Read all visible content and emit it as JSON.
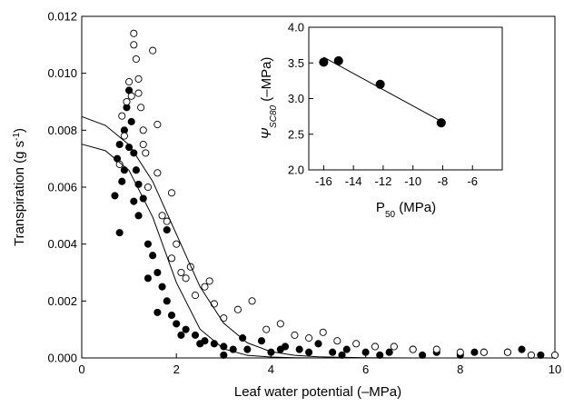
{
  "chart_data": [
    {
      "type": "scatter",
      "x_label": "Leaf water potential (–MPa)",
      "y_label_main": "Transpiration (g s",
      "y_label_sup": "-1",
      "y_label_end": ")",
      "xlim": [
        0,
        10
      ],
      "ylim": [
        0,
        0.012
      ],
      "xticks": [
        0,
        2,
        4,
        6,
        8,
        10
      ],
      "yticks": [
        {
          "value": 0,
          "label": "0.000"
        },
        {
          "value": 0.002,
          "label": "0.002"
        },
        {
          "value": 0.004,
          "label": "0.004"
        },
        {
          "value": 0.006,
          "label": "0.006"
        },
        {
          "value": 0.008,
          "label": "0.008"
        },
        {
          "value": 0.01,
          "label": "0.010"
        },
        {
          "value": 0.012,
          "label": "0.012"
        }
      ],
      "series": [
        {
          "type": "scatter",
          "color": "#000000",
          "fill": "#000000",
          "x": [
            0.7,
            0.75,
            0.8,
            0.85,
            0.9,
            0.95,
            1.0,
            1.05,
            1.1,
            1.15,
            1.2,
            1.3,
            1.4,
            1.5,
            1.6,
            1.7,
            1.8,
            1.9,
            2.0,
            2.2,
            2.4,
            2.6,
            2.8,
            3.0,
            3.2,
            3.5,
            3.8,
            4.0,
            4.3,
            4.6,
            5.0,
            5.3,
            5.6,
            6.0,
            6.5,
            7.0,
            7.5,
            8.0,
            8.5,
            9.0,
            9.3,
            9.7,
            0.8,
            0.9,
            1.0,
            1.1,
            1.2,
            1.4,
            1.6,
            1.8,
            2.1,
            2.5,
            3.0,
            3.4,
            4.2,
            4.8,
            5.5,
            6.3,
            7.2,
            8.3
          ],
          "values": [
            0.0057,
            0.007,
            0.0075,
            0.0062,
            0.008,
            0.0088,
            0.0094,
            0.0083,
            0.0072,
            0.0066,
            0.0061,
            0.0056,
            0.004,
            0.0036,
            0.003,
            0.0025,
            0.002,
            0.0015,
            0.0012,
            0.001,
            0.0008,
            0.0006,
            0.0005,
            0.0004,
            0.0003,
            0.0003,
            0.0006,
            0.0002,
            0.0004,
            0.0003,
            0.0005,
            0.0002,
            0.0003,
            0.0002,
            0.0002,
            0.0003,
            0.0002,
            0.0001,
            0.0002,
            0.0002,
            0.0003,
            0.0001,
            0.0044,
            0.0066,
            0.0074,
            0.0055,
            0.005,
            0.0028,
            0.0016,
            0.0045,
            0.0008,
            0.0005,
            0.0001,
            0.0007,
            0.0003,
            0.0002,
            0.0001,
            0.0001,
            0.0001,
            0.0002
          ]
        },
        {
          "type": "scatter",
          "color": "#000000",
          "fill": "#ffffff",
          "x": [
            0.8,
            0.85,
            0.9,
            0.95,
            1.0,
            1.05,
            1.1,
            1.15,
            1.2,
            1.25,
            1.3,
            1.35,
            1.4,
            1.5,
            1.6,
            1.7,
            1.8,
            1.9,
            2.0,
            2.1,
            2.2,
            2.4,
            2.6,
            2.8,
            3.0,
            3.3,
            3.6,
            3.9,
            4.2,
            4.5,
            4.8,
            5.1,
            5.4,
            5.8,
            6.2,
            6.6,
            7.0,
            7.5,
            8.0,
            8.5,
            9.0,
            9.5,
            10.0,
            1.1,
            1.2,
            1.3,
            1.6,
            1.9,
            2.3,
            2.7
          ],
          "values": [
            0.0068,
            0.0085,
            0.0078,
            0.009,
            0.0097,
            0.0092,
            0.0114,
            0.0105,
            0.0098,
            0.0088,
            0.008,
            0.0072,
            0.006,
            0.0108,
            0.0082,
            0.005,
            0.0048,
            0.0035,
            0.004,
            0.003,
            0.0028,
            0.0022,
            0.0025,
            0.0019,
            0.0014,
            0.0017,
            0.002,
            0.001,
            0.0012,
            0.0008,
            0.0007,
            0.0009,
            0.0006,
            0.0005,
            0.0004,
            0.0004,
            0.0003,
            0.0003,
            0.0002,
            0.0002,
            0.0002,
            0.0001,
            0.0001,
            0.011,
            0.0093,
            0.0075,
            0.0065,
            0.0058,
            0.0032,
            0.0027
          ]
        },
        {
          "type": "line",
          "color": "#000000",
          "x": [
            0,
            0.5,
            1,
            1.5,
            2,
            2.5,
            3,
            3.5,
            4,
            4.5,
            5,
            5.5,
            6,
            7,
            8,
            9,
            10
          ],
          "values": [
            0.00848,
            0.00817,
            0.00749,
            0.0062,
            0.00435,
            0.0025,
            0.00122,
            0.00053,
            0.00022,
            9e-05,
            4e-05,
            2e-05,
            1e-05,
            0,
            0,
            0,
            0
          ]
        },
        {
          "type": "line",
          "color": "#000000",
          "x": [
            0,
            0.5,
            1,
            1.5,
            2,
            2.5,
            3,
            3.5,
            4,
            4.5,
            5,
            6,
            7,
            8,
            9,
            10
          ],
          "values": [
            0.00751,
            0.00728,
            0.00659,
            0.00495,
            0.00265,
            0.00101,
            0.00032,
            9e-05,
            3e-05,
            1e-05,
            0,
            0,
            0,
            0,
            0,
            0
          ]
        }
      ]
    },
    {
      "type": "scatter",
      "x_label_main": "P",
      "x_label_sub": "50",
      "x_label_end": " (MPa)",
      "y_label_main": "Ψ",
      "y_label_sub": "SC80",
      "y_label_end": " (–MPa)",
      "xlim": [
        -17,
        -4
      ],
      "ylim": [
        2,
        4
      ],
      "xticks": [
        -16,
        -14,
        -12,
        -10,
        -8,
        -6
      ],
      "yticks": [
        {
          "value": 2,
          "label": "2.0"
        },
        {
          "value": 2.5,
          "label": "2.5"
        },
        {
          "value": 3,
          "label": "3.0"
        },
        {
          "value": 3.5,
          "label": "3.5"
        },
        {
          "value": 4,
          "label": "4.0"
        }
      ],
      "series": [
        {
          "type": "line",
          "color": "#000000",
          "x": [
            -16,
            -8
          ],
          "values": [
            3.58,
            2.67
          ]
        },
        {
          "type": "scatter",
          "color": "#000000",
          "fill": "#000000",
          "x": [
            -16,
            -15,
            -12.2,
            -8.1
          ],
          "values": [
            3.51,
            3.53,
            3.2,
            2.66
          ]
        }
      ]
    }
  ]
}
